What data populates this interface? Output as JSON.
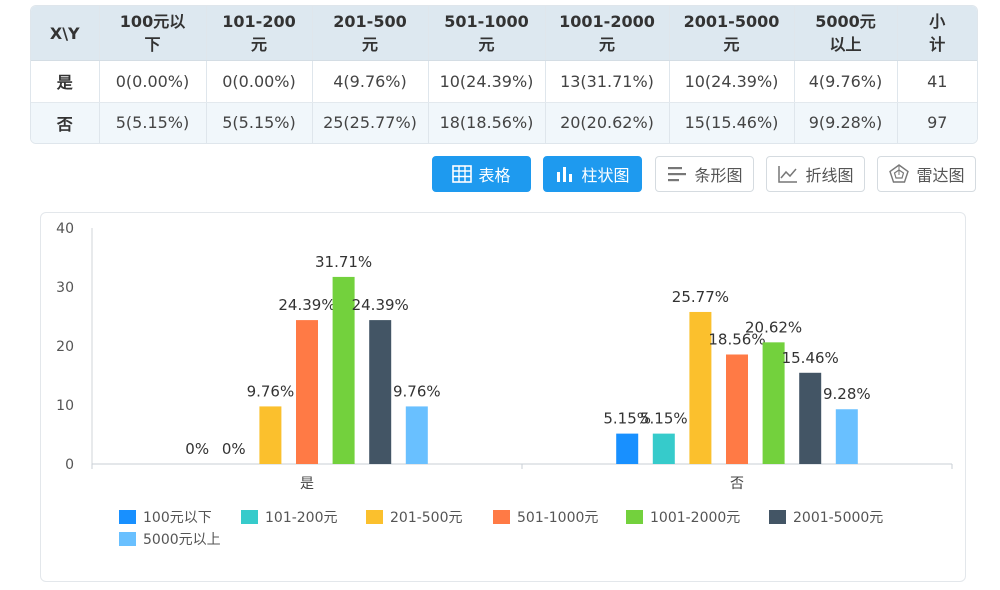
{
  "table": {
    "corner": "X\\Y",
    "headers": [
      "100元以\n下",
      "101-200\n元",
      "201-500\n元",
      "501-1000\n元",
      "1001-2000\n元",
      "2001-5000\n元",
      "5000元\n以上",
      "小\n计"
    ],
    "rows": [
      {
        "label": "是",
        "cells": [
          "0(0.00%)",
          "0(0.00%)",
          "4(9.76%)",
          "10(24.39%)",
          "13(31.71%)",
          "10(24.39%)",
          "4(9.76%)",
          "41"
        ]
      },
      {
        "label": "否",
        "cells": [
          "5(5.15%)",
          "5(5.15%)",
          "25(25.77%)",
          "18(18.56%)",
          "20(20.62%)",
          "15(15.46%)",
          "9(9.28%)",
          "97"
        ]
      }
    ]
  },
  "toolbar": {
    "buttons": [
      {
        "label": "表格",
        "icon": "table-icon",
        "active": true
      },
      {
        "label": "柱状图",
        "icon": "bar-chart-icon",
        "active": true
      },
      {
        "label": "条形图",
        "icon": "horizontal-bar-icon",
        "active": false
      },
      {
        "label": "折线图",
        "icon": "line-chart-icon",
        "active": false
      },
      {
        "label": "雷达图",
        "icon": "radar-chart-icon",
        "active": false
      }
    ]
  },
  "chart_data": {
    "type": "bar",
    "categories": [
      "是",
      "否"
    ],
    "series": [
      {
        "name": "100元以下",
        "values": [
          0,
          5.15
        ],
        "labels": [
          "0%",
          "5.15%"
        ],
        "color": "#1890ff"
      },
      {
        "name": "101-200元",
        "values": [
          0,
          5.15
        ],
        "labels": [
          "0%",
          "5.15%"
        ],
        "color": "#36cbcb"
      },
      {
        "name": "201-500元",
        "values": [
          9.76,
          25.77
        ],
        "labels": [
          "9.76%",
          "25.77%"
        ],
        "color": "#fbc02d"
      },
      {
        "name": "501-1000元",
        "values": [
          24.39,
          18.56
        ],
        "labels": [
          "24.39%",
          "18.56%"
        ],
        "color": "#ff7a45"
      },
      {
        "name": "1001-2000元",
        "values": [
          31.71,
          20.62
        ],
        "labels": [
          "31.71%",
          "20.62%"
        ],
        "color": "#73d13d"
      },
      {
        "name": "2001-5000元",
        "values": [
          24.39,
          15.46
        ],
        "labels": [
          "24.39%",
          "15.46%"
        ],
        "color": "#435565"
      },
      {
        "name": "5000元以上",
        "values": [
          9.76,
          9.28
        ],
        "labels": [
          "9.76%",
          "9.28%"
        ],
        "color": "#69c0ff"
      }
    ],
    "yticks": [
      0,
      10,
      20,
      30,
      40
    ],
    "ylim": [
      0,
      40
    ],
    "grid": false,
    "legend_position": "bottom"
  }
}
